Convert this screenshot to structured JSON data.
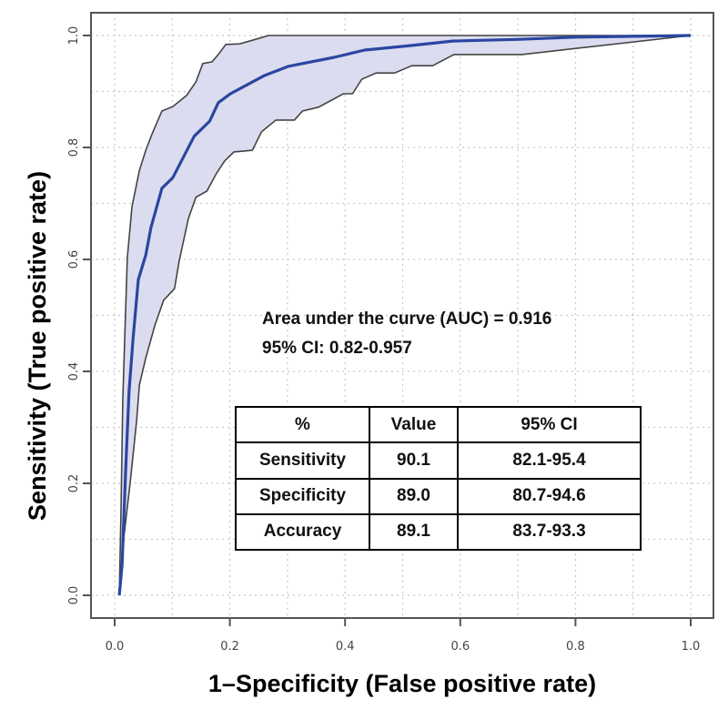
{
  "chart_data": {
    "type": "line",
    "title": "",
    "xlabel": "1–Specificity (False positive rate)",
    "ylabel": "Sensitivity (True positive rate)",
    "xlim": [
      0.0,
      1.0
    ],
    "ylim": [
      0.0,
      1.0
    ],
    "xticks": [
      "0.0",
      "0.2",
      "0.4",
      "0.6",
      "0.8",
      "1.0"
    ],
    "yticks": [
      "0.0",
      "0.2",
      "0.4",
      "0.6",
      "0.8",
      "1.0"
    ],
    "grid": true,
    "colors": {
      "mean_line": "#2b46a0",
      "ci_fill": "#dcdcf0",
      "ci_border": "#444444"
    },
    "series": [
      {
        "name": "ROC mean",
        "x": [
          0.008,
          0.013,
          0.019,
          0.025,
          0.032,
          0.041,
          0.054,
          0.063,
          0.082,
          0.101,
          0.138,
          0.165,
          0.18,
          0.201,
          0.259,
          0.302,
          0.381,
          0.434,
          0.513,
          0.587,
          0.698,
          0.802,
          1.0
        ],
        "y": [
          0.0,
          0.055,
          0.22,
          0.364,
          0.46,
          0.564,
          0.608,
          0.657,
          0.727,
          0.746,
          0.82,
          0.847,
          0.88,
          0.896,
          0.928,
          0.945,
          0.961,
          0.974,
          0.982,
          0.99,
          0.993,
          0.997,
          1.0
        ]
      },
      {
        "name": "95% CI upper",
        "x": [
          0.008,
          0.011,
          0.014,
          0.017,
          0.022,
          0.03,
          0.043,
          0.054,
          0.065,
          0.082,
          0.101,
          0.125,
          0.141,
          0.153,
          0.169,
          0.18,
          0.193,
          0.217,
          0.244,
          0.267,
          1.0
        ],
        "y": [
          0.0,
          0.153,
          0.348,
          0.446,
          0.603,
          0.694,
          0.759,
          0.795,
          0.824,
          0.865,
          0.873,
          0.893,
          0.917,
          0.95,
          0.953,
          0.966,
          0.984,
          0.985,
          0.993,
          1.0,
          1.0
        ]
      },
      {
        "name": "95% CI lower",
        "x": [
          0.008,
          0.016,
          0.027,
          0.038,
          0.043,
          0.054,
          0.07,
          0.085,
          0.104,
          0.112,
          0.128,
          0.141,
          0.16,
          0.177,
          0.191,
          0.207,
          0.239,
          0.255,
          0.28,
          0.312,
          0.326,
          0.354,
          0.397,
          0.413,
          0.429,
          0.454,
          0.486,
          0.516,
          0.552,
          0.589,
          0.707,
          1.0
        ],
        "y": [
          0.0,
          0.104,
          0.202,
          0.311,
          0.376,
          0.424,
          0.483,
          0.527,
          0.548,
          0.597,
          0.673,
          0.711,
          0.722,
          0.754,
          0.776,
          0.792,
          0.795,
          0.828,
          0.849,
          0.849,
          0.865,
          0.872,
          0.896,
          0.896,
          0.922,
          0.933,
          0.933,
          0.946,
          0.946,
          0.966,
          0.966,
          1.0
        ]
      }
    ],
    "annotations": [
      "Area under the curve (AUC) = 0.916",
      "95% CI: 0.82-0.957"
    ],
    "table": {
      "headers": [
        "%",
        "Value",
        "95% CI"
      ],
      "rows": [
        [
          "Sensitivity",
          "90.1",
          "82.1-95.4"
        ],
        [
          "Specificity",
          "89.0",
          "80.7-94.6"
        ],
        [
          "Accuracy",
          "89.1",
          "83.7-93.3"
        ]
      ]
    }
  },
  "annotation": {
    "auc_line": "Area under the curve (AUC) = 0.916",
    "ci_prefix": "95% CI:",
    "ci_value": " 0.82-0.957"
  },
  "table": {
    "headers": [
      "%",
      "Value",
      "95% CI"
    ],
    "rows": [
      [
        "Sensitivity",
        "90.1",
        "82.1-95.4"
      ],
      [
        "Specificity",
        "89.0",
        "80.7-94.6"
      ],
      [
        "Accuracy",
        "89.1",
        "83.7-93.3"
      ]
    ]
  }
}
